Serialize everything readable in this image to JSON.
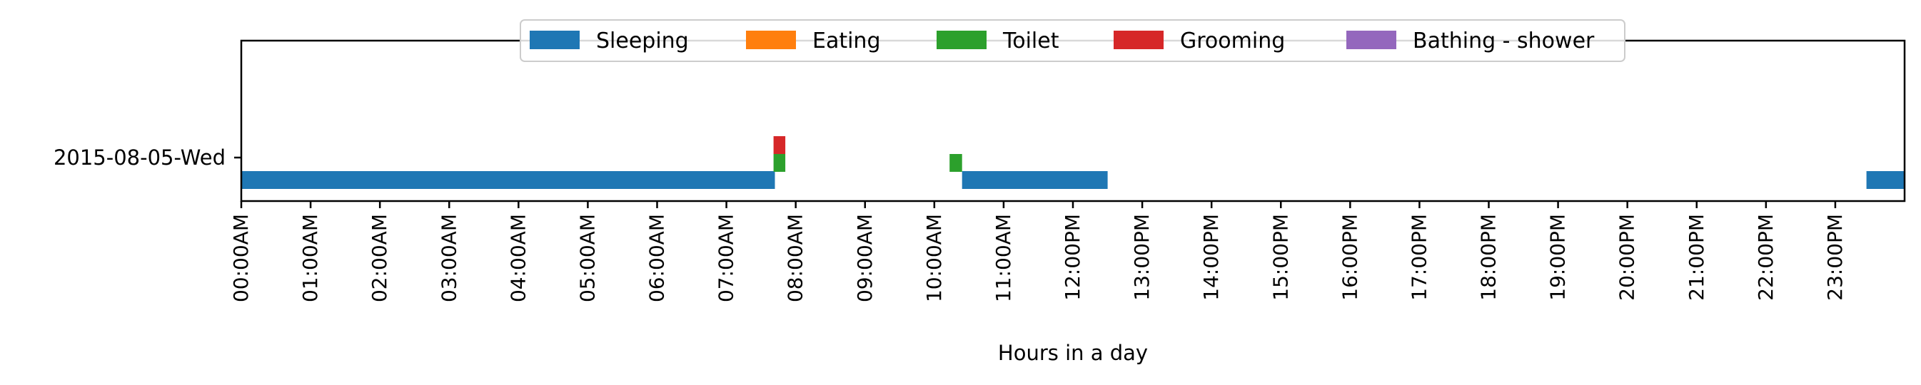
{
  "chart_data": {
    "type": "timeline",
    "xlabel": "Hours in a day",
    "x_unit": "hour of day",
    "xlim": [
      0,
      24
    ],
    "grid": false,
    "legend_placement": "top-center",
    "rows": [
      "2015-08-05-Wed"
    ],
    "x_ticks": [
      {
        "value": 0,
        "label": "00:00AM"
      },
      {
        "value": 1,
        "label": "01:00AM"
      },
      {
        "value": 2,
        "label": "02:00AM"
      },
      {
        "value": 3,
        "label": "03:00AM"
      },
      {
        "value": 4,
        "label": "04:00AM"
      },
      {
        "value": 5,
        "label": "05:00AM"
      },
      {
        "value": 6,
        "label": "06:00AM"
      },
      {
        "value": 7,
        "label": "07:00AM"
      },
      {
        "value": 8,
        "label": "08:00AM"
      },
      {
        "value": 9,
        "label": "09:00AM"
      },
      {
        "value": 10,
        "label": "10:00AM"
      },
      {
        "value": 11,
        "label": "11:00AM"
      },
      {
        "value": 12,
        "label": "12:00PM"
      },
      {
        "value": 13,
        "label": "13:00PM"
      },
      {
        "value": 14,
        "label": "14:00PM"
      },
      {
        "value": 15,
        "label": "15:00PM"
      },
      {
        "value": 16,
        "label": "16:00PM"
      },
      {
        "value": 17,
        "label": "17:00PM"
      },
      {
        "value": 18,
        "label": "18:00PM"
      },
      {
        "value": 19,
        "label": "19:00PM"
      },
      {
        "value": 20,
        "label": "20:00PM"
      },
      {
        "value": 21,
        "label": "21:00PM"
      },
      {
        "value": 22,
        "label": "22:00PM"
      },
      {
        "value": 23,
        "label": "23:00PM"
      }
    ],
    "series": [
      {
        "name": "Sleeping",
        "color": "#1f77b4",
        "lane": 0,
        "intervals": [
          [
            0,
            7.7
          ],
          [
            10.4,
            12.5
          ],
          [
            23.45,
            24
          ]
        ]
      },
      {
        "name": "Eating",
        "color": "#ff7f0e",
        "lane": 1,
        "intervals": []
      },
      {
        "name": "Toilet",
        "color": "#2ca02c",
        "lane": 1,
        "intervals": [
          [
            7.68,
            7.85
          ],
          [
            10.22,
            10.4
          ]
        ]
      },
      {
        "name": "Grooming",
        "color": "#d62728",
        "lane": 2,
        "intervals": [
          [
            7.68,
            7.85
          ]
        ]
      },
      {
        "name": "Bathing - shower",
        "color": "#9467bd",
        "lane": 3,
        "intervals": []
      }
    ]
  }
}
